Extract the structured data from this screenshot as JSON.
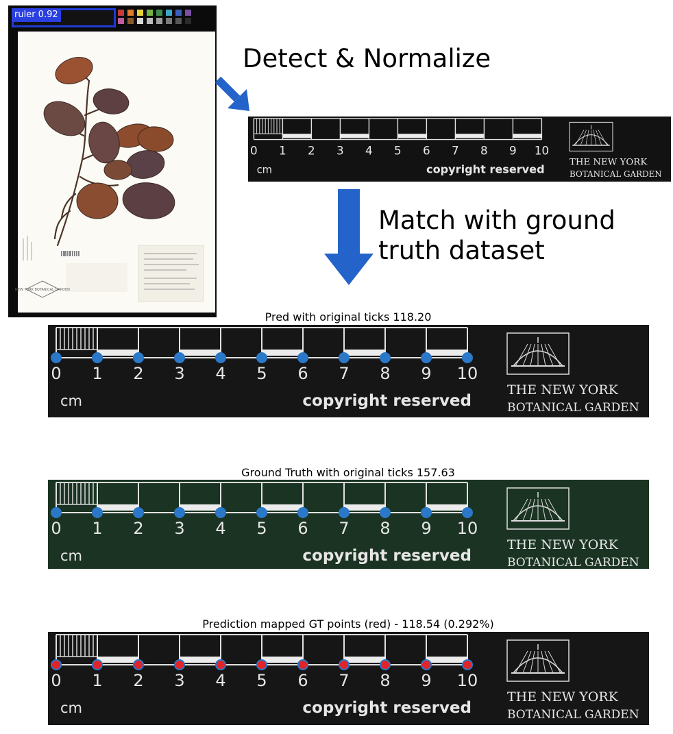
{
  "specimen": {
    "detection_label": "ruler 0.92",
    "herbarium_seal": "NEW YORK BOTANICAL GARDEN",
    "swatch_colors": [
      "#c33c3c",
      "#e17b2d",
      "#e8d23a",
      "#6fb445",
      "#3b8a4b",
      "#3aa6c9",
      "#3b5fbf",
      "#7b4fa6",
      "#c45aa0",
      "#8b5a2b",
      "#d9d9d9",
      "#bdbdbd",
      "#9e9e9e",
      "#7a7a7a",
      "#575757",
      "#2b2b2b"
    ]
  },
  "steps": {
    "detect": "Detect & Normalize",
    "match": "Match with ground truth dataset"
  },
  "ruler": {
    "tick_labels": [
      "0",
      "1",
      "2",
      "3",
      "4",
      "5",
      "6",
      "7",
      "8",
      "9",
      "10"
    ],
    "unit": "cm",
    "copyright": "copyright reserved",
    "logo_line1": "THE NEW YORK",
    "logo_line2": "BOTANICAL GARDEN"
  },
  "panels": [
    {
      "title": "Pred with original ticks 118.20",
      "background": "#161616",
      "point_fill": "#2b78c8",
      "point_stroke": "#2b78c8"
    },
    {
      "title": "Ground Truth with original ticks 157.63",
      "background": "#1b3322",
      "point_fill": "#2b78c8",
      "point_stroke": "#2b78c8"
    },
    {
      "title": "Prediction mapped GT points (red) - 118.54 (0.292%)",
      "background": "#161616",
      "point_fill": "#e0242a",
      "point_stroke": "#2b78c8"
    }
  ],
  "colors": {
    "arrow": "#2463c9",
    "detection_box": "#2a3fe0"
  }
}
